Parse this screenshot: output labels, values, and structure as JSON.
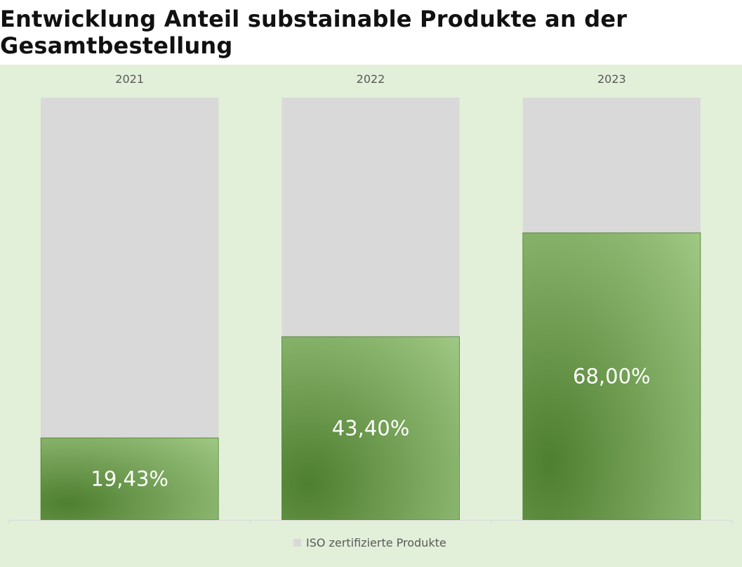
{
  "chart_data": {
    "type": "bar",
    "title": "Entwicklung Anteil substainable Produkte an der Gesamtbestellung",
    "categories": [
      "2021",
      "2022",
      "2023"
    ],
    "series": [
      {
        "name": "ISO zertifizierte Produkte",
        "values": [
          19.43,
          43.4,
          68.0
        ],
        "labels": [
          "19,43%",
          "43,40%",
          "68,00%"
        ]
      }
    ],
    "ylim": [
      0,
      100
    ],
    "stacked_remainder_total": 100,
    "legend_position": "bottom",
    "grid": false,
    "colors": {
      "background": "#e2efd9",
      "remainder": "#d9d9d9",
      "bar_dark": "#4e7e2f",
      "bar_light": "#a9d18e",
      "axis": "#d9d9d9"
    }
  }
}
